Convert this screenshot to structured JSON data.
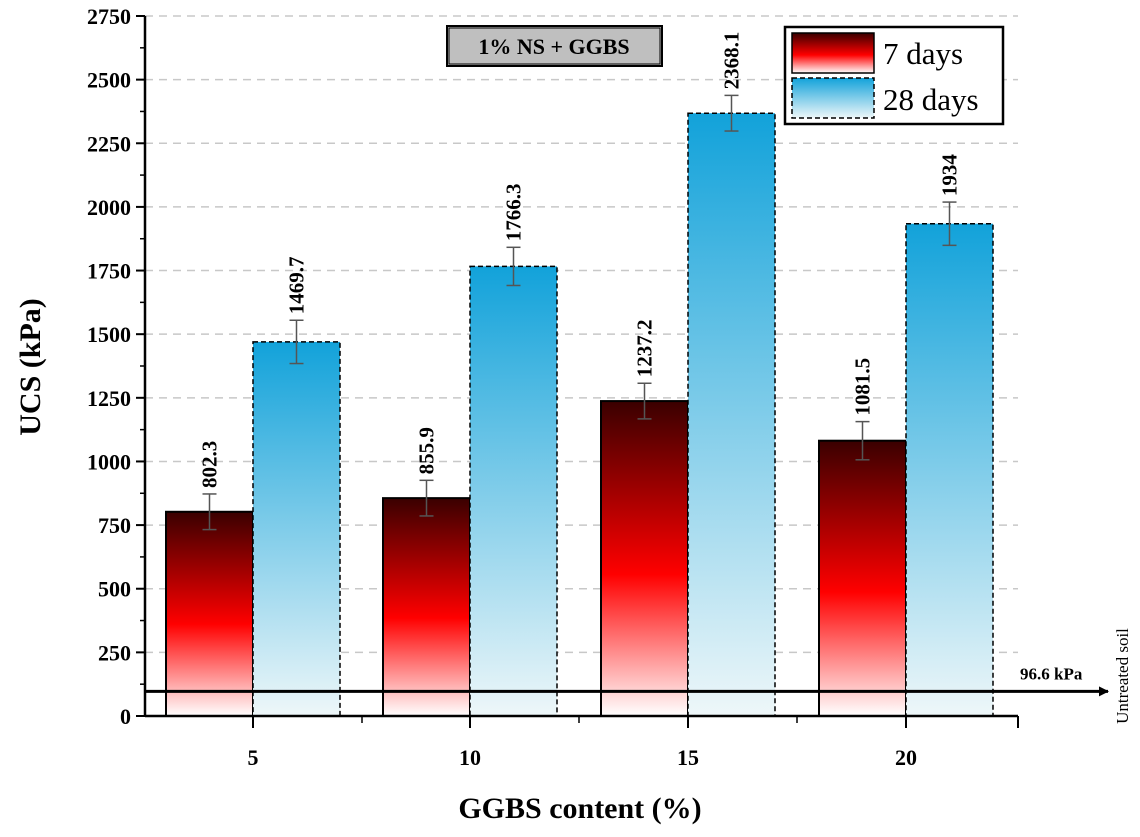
{
  "chart_data": {
    "type": "bar",
    "title": "",
    "annotation": "1% NS + GGBS",
    "xlabel": "GGBS content (%)",
    "ylabel": "UCS (kPa)",
    "categories": [
      "5",
      "10",
      "15",
      "20"
    ],
    "ylim": [
      0,
      2750
    ],
    "yticks": [
      0,
      250,
      500,
      750,
      1000,
      1250,
      1500,
      1750,
      2000,
      2250,
      2500,
      2750
    ],
    "ytick_labels": [
      "0",
      "250",
      "500",
      "750",
      "1000",
      "1250",
      "1500",
      "1750",
      "2000",
      "2250",
      "2500",
      "2750"
    ],
    "grid": "horizontal dashed",
    "legend_position": "top-right",
    "series": [
      {
        "name": "7 days",
        "values": [
          802.3,
          855.9,
          1237.2,
          1081.5
        ],
        "labels": [
          "802.3",
          "855.9",
          "1237.2",
          "1081.5"
        ],
        "errors": [
          70,
          70,
          70,
          75
        ],
        "gradient_top": "#3a0000",
        "gradient_mid": "#ff0000",
        "gradient_bottom": "#ffffff"
      },
      {
        "name": "28 days",
        "values": [
          1469.7,
          1766.3,
          2368.1,
          1934
        ],
        "labels": [
          "1469.7",
          "1766.3",
          "2368.1",
          "1934"
        ],
        "errors": [
          85,
          75,
          70,
          85
        ],
        "gradient_top": "#12a2da",
        "gradient_bottom": "#eef7f9"
      }
    ],
    "reference_line": {
      "value": 96.6,
      "label": "96.6 kPa",
      "side_label": "Untreated soil"
    }
  }
}
